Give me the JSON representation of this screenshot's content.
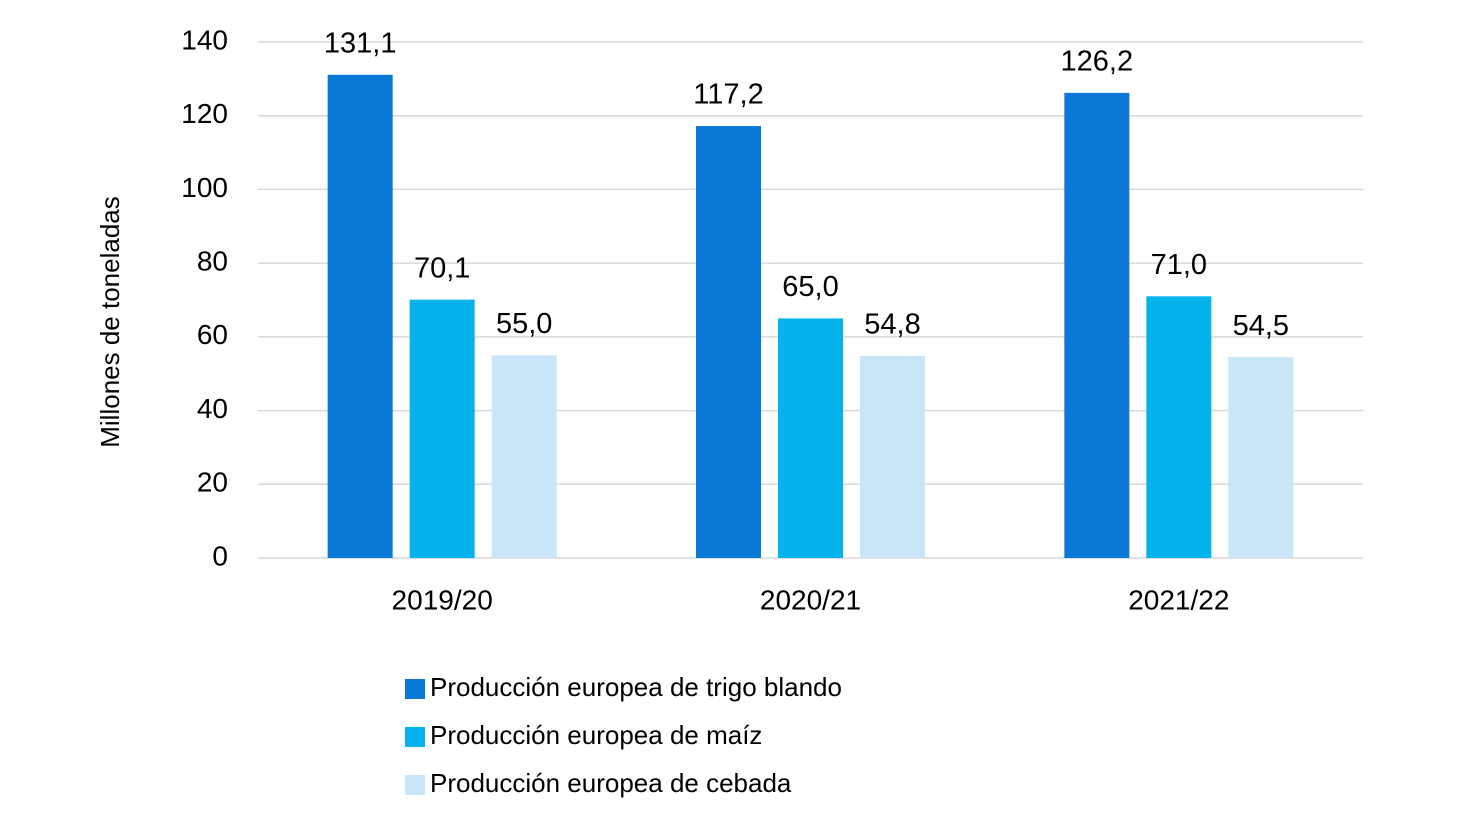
{
  "chart_data": {
    "type": "bar",
    "y_label": "Millones de toneladas",
    "categories": [
      "2019/20",
      "2020/21",
      "2021/22"
    ],
    "series": [
      {
        "name": "Producción europea de trigo blando",
        "color": "#0a78d6",
        "values": [
          131.1,
          117.2,
          126.2
        ],
        "value_labels": [
          "131,1",
          "117,2",
          "126,2"
        ]
      },
      {
        "name": "Producción europea de maíz",
        "color": "#05b3ec",
        "values": [
          70.1,
          65.0,
          71.0
        ],
        "value_labels": [
          "70,1",
          "65,0",
          "71,0"
        ]
      },
      {
        "name": "Producción europea de cebada",
        "color": "#c8e6f8",
        "values": [
          55.0,
          54.8,
          54.5
        ],
        "value_labels": [
          "55,0",
          "54,8",
          "54,5"
        ]
      }
    ],
    "ylim": [
      0,
      140
    ],
    "yticks": [
      0,
      20,
      40,
      60,
      80,
      100,
      120,
      140
    ],
    "grid": true,
    "legend": "bottom"
  }
}
